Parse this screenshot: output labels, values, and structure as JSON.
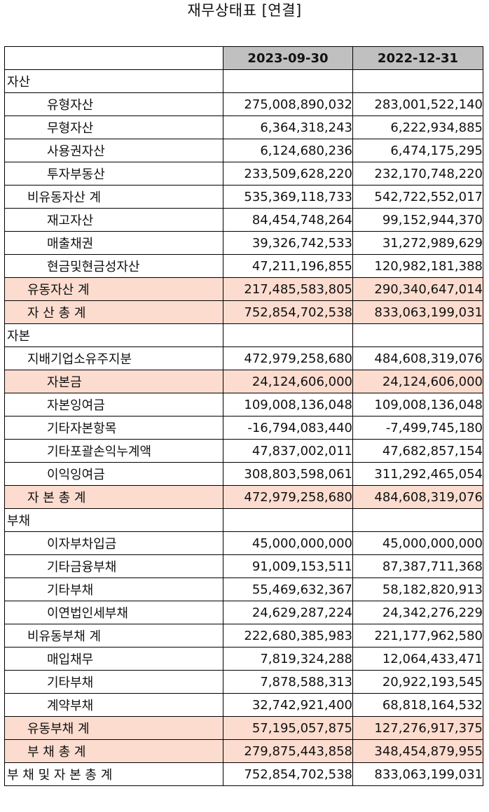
{
  "title": "재무상태표 [연결]",
  "columns": [
    "2023-09-30",
    "2022-12-31"
  ],
  "rows": [
    {
      "label": "자산",
      "level": 0,
      "v1": "",
      "v2": ""
    },
    {
      "label": "유형자산",
      "level": 2,
      "v1": "275,008,890,032",
      "v2": "283,001,522,140"
    },
    {
      "label": "무형자산",
      "level": 2,
      "v1": "6,364,318,243",
      "v2": "6,222,934,885"
    },
    {
      "label": "사용권자산",
      "level": 2,
      "v1": "6,124,680,236",
      "v2": "6,474,175,295"
    },
    {
      "label": "투자부동산",
      "level": 2,
      "v1": "233,509,628,220",
      "v2": "232,170,748,220"
    },
    {
      "label": "비유동자산 계",
      "level": 1,
      "v1": "535,369,118,733",
      "v2": "542,722,552,017"
    },
    {
      "label": "재고자산",
      "level": 2,
      "v1": "84,454,748,264",
      "v2": "99,152,944,370"
    },
    {
      "label": "매출채권",
      "level": 2,
      "v1": "39,326,742,533",
      "v2": "31,272,989,629"
    },
    {
      "label": "현금및현금성자산",
      "level": 2,
      "v1": "47,211,196,855",
      "v2": "120,982,181,388"
    },
    {
      "label": "유동자산 계",
      "level": 1,
      "v1": "217,485,583,805",
      "v2": "290,340,647,014",
      "highlight": true
    },
    {
      "label": "자 산 총 계",
      "level": 1,
      "v1": "752,854,702,538",
      "v2": "833,063,199,031",
      "highlight": true
    },
    {
      "label": "자본",
      "level": 0,
      "v1": "",
      "v2": ""
    },
    {
      "label": "지배기업소유주지분",
      "level": 1,
      "v1": "472,979,258,680",
      "v2": "484,608,319,076"
    },
    {
      "label": "자본금",
      "level": 2,
      "v1": "24,124,606,000",
      "v2": "24,124,606,000",
      "highlight": true
    },
    {
      "label": "자본잉여금",
      "level": 2,
      "v1": "109,008,136,048",
      "v2": "109,008,136,048"
    },
    {
      "label": "기타자본항목",
      "level": 2,
      "v1": "-16,794,083,440",
      "v2": "-7,499,745,180"
    },
    {
      "label": "기타포괄손익누계액",
      "level": 2,
      "v1": "47,837,002,011",
      "v2": "47,682,857,154"
    },
    {
      "label": "이익잉여금",
      "level": 2,
      "v1": "308,803,598,061",
      "v2": "311,292,465,054"
    },
    {
      "label": "자 본 총 계",
      "level": 1,
      "v1": "472,979,258,680",
      "v2": "484,608,319,076",
      "highlight": true
    },
    {
      "label": "부채",
      "level": 0,
      "v1": "",
      "v2": ""
    },
    {
      "label": "이자부차입금",
      "level": 2,
      "v1": "45,000,000,000",
      "v2": "45,000,000,000"
    },
    {
      "label": "기타금융부채",
      "level": 2,
      "v1": "91,009,153,511",
      "v2": "87,387,711,368"
    },
    {
      "label": "기타부채",
      "level": 2,
      "v1": "55,469,632,367",
      "v2": "58,182,820,913"
    },
    {
      "label": "이연법인세부채",
      "level": 2,
      "v1": "24,629,287,224",
      "v2": "24,342,276,229"
    },
    {
      "label": "비유동부채 계",
      "level": 1,
      "v1": "222,680,385,983",
      "v2": "221,177,962,580"
    },
    {
      "label": "매입채무",
      "level": 2,
      "v1": "7,819,324,288",
      "v2": "12,064,433,471"
    },
    {
      "label": "기타부채",
      "level": 2,
      "v1": "7,878,588,313",
      "v2": "20,922,193,545"
    },
    {
      "label": "계약부채",
      "level": 2,
      "v1": "32,742,921,400",
      "v2": "68,818,164,532"
    },
    {
      "label": "유동부채 계",
      "level": 1,
      "v1": "57,195,057,875",
      "v2": "127,276,917,375",
      "highlight": true
    },
    {
      "label": "부 채 총 계",
      "level": 1,
      "v1": "279,875,443,858",
      "v2": "348,454,879,955",
      "highlight": true
    },
    {
      "label": "부 채 및 자 본 총 계",
      "level": 0,
      "v1": "752,854,702,538",
      "v2": "833,063,199,031"
    }
  ]
}
